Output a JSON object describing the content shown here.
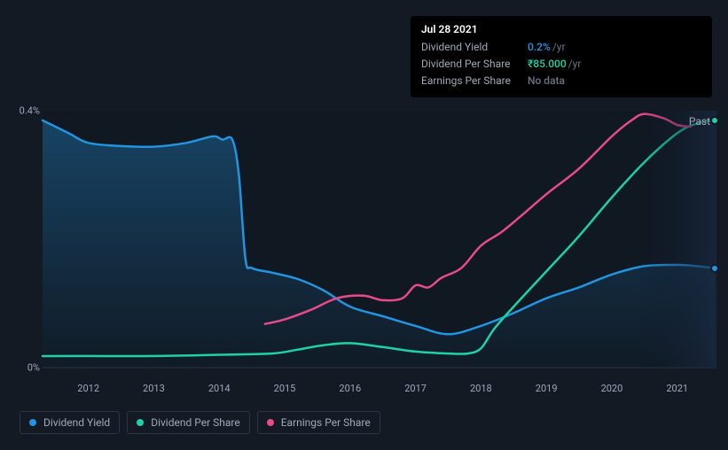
{
  "tooltip": {
    "date": "Jul 28 2021",
    "rows": [
      {
        "label": "Dividend Yield",
        "value": "0.2%",
        "unit": "/yr",
        "color": "#2394df"
      },
      {
        "label": "Dividend Per Share",
        "value": "₹85.000",
        "unit": "/yr",
        "color": "#1ed1a8"
      },
      {
        "label": "Earnings Per Share",
        "value": "No data",
        "unit": "",
        "color": "#6b7485"
      }
    ]
  },
  "chart": {
    "background": "#131a24",
    "plot_bg_gradient_top": "#16202d",
    "plot_bg_gradient_bottom": "#0f1620",
    "past_label": "Past",
    "y_axis": {
      "ticks": [
        {
          "label": "0.4%",
          "y": 25
        },
        {
          "label": "0%",
          "y": 315
        }
      ],
      "color": "#a0a9b8"
    },
    "x_axis": {
      "start_year": 2011.3,
      "end_year": 2021.6,
      "ticks": [
        2012,
        2013,
        2014,
        2015,
        2016,
        2017,
        2018,
        2019,
        2020,
        2021
      ],
      "color": "#a0a9b8"
    },
    "series": [
      {
        "name": "Dividend Yield",
        "color": "#2394df",
        "stroke_width": 2.5,
        "fill": true,
        "fill_opacity_top": 0.35,
        "fill_opacity_bottom": 0.02,
        "has_end_marker": true,
        "points": [
          [
            2011.3,
            0.385
          ],
          [
            2011.7,
            0.365
          ],
          [
            2012.0,
            0.35
          ],
          [
            2012.5,
            0.345
          ],
          [
            2013.0,
            0.344
          ],
          [
            2013.5,
            0.35
          ],
          [
            2013.9,
            0.36
          ],
          [
            2014.05,
            0.355
          ],
          [
            2014.2,
            0.355
          ],
          [
            2014.3,
            0.3
          ],
          [
            2014.4,
            0.17
          ],
          [
            2014.5,
            0.155
          ],
          [
            2014.8,
            0.148
          ],
          [
            2015.2,
            0.138
          ],
          [
            2015.6,
            0.12
          ],
          [
            2016.0,
            0.095
          ],
          [
            2016.5,
            0.08
          ],
          [
            2017.0,
            0.065
          ],
          [
            2017.5,
            0.052
          ],
          [
            2018.0,
            0.065
          ],
          [
            2018.5,
            0.085
          ],
          [
            2019.0,
            0.108
          ],
          [
            2019.5,
            0.125
          ],
          [
            2020.0,
            0.145
          ],
          [
            2020.5,
            0.158
          ],
          [
            2021.0,
            0.16
          ],
          [
            2021.3,
            0.158
          ],
          [
            2021.57,
            0.155
          ]
        ]
      },
      {
        "name": "Dividend Per Share",
        "color": "#1ed1a8",
        "stroke_width": 2.5,
        "fill": false,
        "has_end_marker": true,
        "points": [
          [
            2011.3,
            0.018
          ],
          [
            2012.0,
            0.018
          ],
          [
            2013.0,
            0.018
          ],
          [
            2014.0,
            0.02
          ],
          [
            2014.8,
            0.022
          ],
          [
            2015.2,
            0.028
          ],
          [
            2015.6,
            0.035
          ],
          [
            2016.0,
            0.038
          ],
          [
            2016.5,
            0.032
          ],
          [
            2017.0,
            0.025
          ],
          [
            2017.5,
            0.022
          ],
          [
            2017.8,
            0.022
          ],
          [
            2018.0,
            0.03
          ],
          [
            2018.2,
            0.06
          ],
          [
            2018.5,
            0.095
          ],
          [
            2019.0,
            0.15
          ],
          [
            2019.5,
            0.205
          ],
          [
            2020.0,
            0.265
          ],
          [
            2020.5,
            0.32
          ],
          [
            2021.0,
            0.365
          ],
          [
            2021.3,
            0.38
          ],
          [
            2021.57,
            0.385
          ]
        ]
      },
      {
        "name": "Earnings Per Share",
        "color": "#e84a8a",
        "stroke_width": 2.5,
        "fill": false,
        "has_end_marker": false,
        "points": [
          [
            2014.7,
            0.068
          ],
          [
            2015.0,
            0.075
          ],
          [
            2015.4,
            0.09
          ],
          [
            2015.8,
            0.108
          ],
          [
            2016.2,
            0.112
          ],
          [
            2016.5,
            0.105
          ],
          [
            2016.8,
            0.108
          ],
          [
            2017.0,
            0.128
          ],
          [
            2017.2,
            0.125
          ],
          [
            2017.4,
            0.14
          ],
          [
            2017.7,
            0.155
          ],
          [
            2018.0,
            0.19
          ],
          [
            2018.3,
            0.21
          ],
          [
            2018.6,
            0.235
          ],
          [
            2019.0,
            0.27
          ],
          [
            2019.5,
            0.31
          ],
          [
            2020.0,
            0.36
          ],
          [
            2020.3,
            0.385
          ],
          [
            2020.5,
            0.395
          ],
          [
            2020.8,
            0.388
          ],
          [
            2021.0,
            0.378
          ],
          [
            2021.2,
            0.375
          ]
        ]
      }
    ]
  },
  "legend": [
    {
      "label": "Dividend Yield",
      "color": "#2394df"
    },
    {
      "label": "Dividend Per Share",
      "color": "#1ed1a8"
    },
    {
      "label": "Earnings Per Share",
      "color": "#e84a8a"
    }
  ]
}
